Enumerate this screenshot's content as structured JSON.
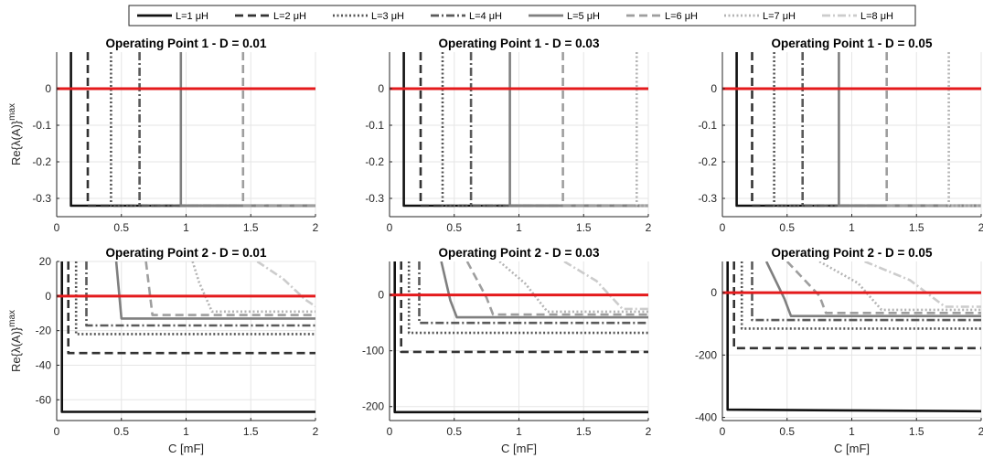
{
  "legend": {
    "position": "top-center",
    "entries": [
      {
        "label": "L=1 μH",
        "color": "#111111",
        "dash": "solid"
      },
      {
        "label": "L=2 μH",
        "color": "#333333",
        "dash": "dashed"
      },
      {
        "label": "L=3 μH",
        "color": "#555555",
        "dash": "dotted"
      },
      {
        "label": "L=4 μH",
        "color": "#5a5a5a",
        "dash": "dashdot"
      },
      {
        "label": "L=5 μH",
        "color": "#7f7f7f",
        "dash": "solid"
      },
      {
        "label": "L=6 μH",
        "color": "#9e9e9e",
        "dash": "dashed"
      },
      {
        "label": "L=7 μH",
        "color": "#b4b4b4",
        "dash": "dotted"
      },
      {
        "label": "L=8 μH",
        "color": "#cccccc",
        "dash": "dashdot"
      }
    ]
  },
  "stability_line": {
    "y": 0,
    "color": "#e41a1c"
  },
  "chart_data": [
    {
      "type": "line",
      "title": "Operating Point 1 - D = 0.01",
      "xlabel": "",
      "ylabel": "Re{λ(A)}max",
      "xlim": [
        0,
        2
      ],
      "ylim": [
        -0.35,
        0.1
      ],
      "xticks": [
        "0",
        "0.5",
        "1",
        "1.5",
        "2"
      ],
      "yticks": [
        {
          "v": 0,
          "t": "0"
        },
        {
          "v": -0.1,
          "t": "-0.1"
        },
        {
          "v": -0.2,
          "t": "-0.2"
        },
        {
          "v": -0.3,
          "t": "-0.3"
        }
      ],
      "grid": true,
      "series": [
        {
          "name": "L=1 μH",
          "x": [
            0.11,
            0.11,
            2
          ],
          "y": [
            0.1,
            -0.32,
            -0.32
          ]
        },
        {
          "name": "L=2 μH",
          "x": [
            0.24,
            0.24,
            2
          ],
          "y": [
            0.1,
            -0.32,
            -0.32
          ]
        },
        {
          "name": "L=3 μH",
          "x": [
            0.42,
            0.42,
            2
          ],
          "y": [
            0.1,
            -0.32,
            -0.32
          ]
        },
        {
          "name": "L=4 μH",
          "x": [
            0.64,
            0.64,
            2
          ],
          "y": [
            0.1,
            -0.32,
            -0.32
          ]
        },
        {
          "name": "L=5 μH",
          "x": [
            0.96,
            0.96,
            2
          ],
          "y": [
            0.1,
            -0.32,
            -0.32
          ]
        },
        {
          "name": "L=6 μH",
          "x": [
            1.44,
            1.44,
            2
          ],
          "y": [
            0.1,
            -0.32,
            -0.32
          ]
        },
        {
          "name": "L=7 μH",
          "x": [],
          "y": []
        },
        {
          "name": "L=8 μH",
          "x": [],
          "y": []
        }
      ]
    },
    {
      "type": "line",
      "title": "Operating Point 1 - D = 0.03",
      "xlabel": "",
      "ylabel": "",
      "xlim": [
        0,
        2
      ],
      "ylim": [
        -0.35,
        0.1
      ],
      "xticks": [
        "0",
        "0.5",
        "1",
        "1.5",
        "2"
      ],
      "yticks": [
        {
          "v": 0,
          "t": "0"
        },
        {
          "v": -0.1,
          "t": "-0.1"
        },
        {
          "v": -0.2,
          "t": "-0.2"
        },
        {
          "v": -0.3,
          "t": "-0.3"
        }
      ],
      "grid": true,
      "series": [
        {
          "name": "L=1 μH",
          "x": [
            0.11,
            0.11,
            2
          ],
          "y": [
            0.1,
            -0.32,
            -0.32
          ]
        },
        {
          "name": "L=2 μH",
          "x": [
            0.24,
            0.24,
            2
          ],
          "y": [
            0.1,
            -0.32,
            -0.32
          ]
        },
        {
          "name": "L=3 μH",
          "x": [
            0.41,
            0.41,
            2
          ],
          "y": [
            0.1,
            -0.32,
            -0.32
          ]
        },
        {
          "name": "L=4 μH",
          "x": [
            0.63,
            0.63,
            2
          ],
          "y": [
            0.1,
            -0.32,
            -0.32
          ]
        },
        {
          "name": "L=5 μH",
          "x": [
            0.93,
            0.93,
            2
          ],
          "y": [
            0.1,
            -0.32,
            -0.32
          ]
        },
        {
          "name": "L=6 μH",
          "x": [
            1.34,
            1.34,
            2
          ],
          "y": [
            0.1,
            -0.32,
            -0.32
          ]
        },
        {
          "name": "L=7 μH",
          "x": [
            1.91,
            1.91,
            2
          ],
          "y": [
            0.1,
            -0.32,
            -0.32
          ]
        },
        {
          "name": "L=8 μH",
          "x": [],
          "y": []
        }
      ]
    },
    {
      "type": "line",
      "title": "Operating Point 1 - D = 0.05",
      "xlabel": "",
      "ylabel": "",
      "xlim": [
        0,
        2
      ],
      "ylim": [
        -0.35,
        0.1
      ],
      "xticks": [
        "0",
        "0.5",
        "1",
        "1.5",
        "2"
      ],
      "yticks": [
        {
          "v": 0,
          "t": "0"
        },
        {
          "v": -0.1,
          "t": "-0.1"
        },
        {
          "v": -0.2,
          "t": "-0.2"
        },
        {
          "v": -0.3,
          "t": "-0.3"
        }
      ],
      "grid": true,
      "series": [
        {
          "name": "L=1 μH",
          "x": [
            0.11,
            0.11,
            2
          ],
          "y": [
            0.1,
            -0.32,
            -0.32
          ]
        },
        {
          "name": "L=2 μH",
          "x": [
            0.23,
            0.23,
            2
          ],
          "y": [
            0.1,
            -0.32,
            -0.32
          ]
        },
        {
          "name": "L=3 μH",
          "x": [
            0.4,
            0.4,
            2
          ],
          "y": [
            0.1,
            -0.32,
            -0.32
          ]
        },
        {
          "name": "L=4 μH",
          "x": [
            0.62,
            0.62,
            2
          ],
          "y": [
            0.1,
            -0.32,
            -0.32
          ]
        },
        {
          "name": "L=5 μH",
          "x": [
            0.9,
            0.9,
            2
          ],
          "y": [
            0.1,
            -0.32,
            -0.32
          ]
        },
        {
          "name": "L=6 μH",
          "x": [
            1.27,
            1.27,
            2
          ],
          "y": [
            0.1,
            -0.32,
            -0.32
          ]
        },
        {
          "name": "L=7 μH",
          "x": [
            1.75,
            1.75,
            2
          ],
          "y": [
            0.1,
            -0.32,
            -0.32
          ]
        },
        {
          "name": "L=8 μH",
          "x": [],
          "y": []
        }
      ]
    },
    {
      "type": "line",
      "title": "Operating Point 2 - D = 0.01",
      "xlabel": "C [mF]",
      "ylabel": "Re{λ(A)}max",
      "xlim": [
        0,
        2
      ],
      "ylim": [
        -72,
        20
      ],
      "xticks": [
        "0",
        "0.5",
        "1",
        "1.5",
        "2"
      ],
      "yticks": [
        {
          "v": 20,
          "t": "20"
        },
        {
          "v": 0,
          "t": "0"
        },
        {
          "v": -20,
          "t": "-20"
        },
        {
          "v": -40,
          "t": "-40"
        },
        {
          "v": -60,
          "t": "-60"
        }
      ],
      "grid": true,
      "series": [
        {
          "name": "L=1 μH",
          "x": [
            0.04,
            0.04,
            2
          ],
          "y": [
            20,
            -67,
            -67
          ]
        },
        {
          "name": "L=2 μH",
          "x": [
            0.09,
            0.09,
            2
          ],
          "y": [
            20,
            -33,
            -33
          ]
        },
        {
          "name": "L=3 μH",
          "x": [
            0.15,
            0.15,
            2
          ],
          "y": [
            20,
            -22,
            -22
          ]
        },
        {
          "name": "L=4 μH",
          "x": [
            0.23,
            0.23,
            2
          ],
          "y": [
            20,
            -17,
            -17
          ]
        },
        {
          "name": "L=5 μH",
          "x": [
            0.46,
            0.5,
            2
          ],
          "y": [
            20,
            -13,
            -13
          ]
        },
        {
          "name": "L=6 μH",
          "x": [
            0.69,
            0.74,
            2
          ],
          "y": [
            20,
            -11,
            -11
          ]
        },
        {
          "name": "L=7 μH",
          "x": [
            1.05,
            1.1,
            1.2,
            2
          ],
          "y": [
            20,
            8,
            -9,
            -9
          ]
        },
        {
          "name": "L=8 μH",
          "x": [
            1.55,
            1.75,
            1.92,
            2
          ],
          "y": [
            20,
            10,
            -2,
            -6
          ]
        }
      ]
    },
    {
      "type": "line",
      "title": "Operating Point 2 - D = 0.03",
      "xlabel": "C [mF]",
      "ylabel": "",
      "xlim": [
        0,
        2
      ],
      "ylim": [
        -225,
        60
      ],
      "xticks": [
        "0",
        "0.5",
        "1",
        "1.5",
        "2"
      ],
      "yticks": [
        {
          "v": 0,
          "t": "0"
        },
        {
          "v": -100,
          "t": "-100"
        },
        {
          "v": -200,
          "t": "-200"
        }
      ],
      "grid": true,
      "series": [
        {
          "name": "L=1 μH",
          "x": [
            0.04,
            0.04,
            2
          ],
          "y": [
            60,
            -210,
            -210
          ]
        },
        {
          "name": "L=2 μH",
          "x": [
            0.09,
            0.09,
            2
          ],
          "y": [
            60,
            -102,
            -102
          ]
        },
        {
          "name": "L=3 μH",
          "x": [
            0.15,
            0.15,
            2
          ],
          "y": [
            60,
            -68,
            -68
          ]
        },
        {
          "name": "L=4 μH",
          "x": [
            0.23,
            0.23,
            2
          ],
          "y": [
            60,
            -50,
            -50
          ]
        },
        {
          "name": "L=5 μH",
          "x": [
            0.4,
            0.47,
            0.52,
            2
          ],
          "y": [
            60,
            -10,
            -40,
            -40
          ]
        },
        {
          "name": "L=6 μH",
          "x": [
            0.6,
            0.75,
            0.8,
            2
          ],
          "y": [
            60,
            -5,
            -35,
            -35
          ]
        },
        {
          "name": "L=7 μH",
          "x": [
            0.85,
            1.05,
            1.22,
            2
          ],
          "y": [
            60,
            20,
            -30,
            -30
          ]
        },
        {
          "name": "L=8 μH",
          "x": [
            1.35,
            1.6,
            1.8,
            2
          ],
          "y": [
            60,
            25,
            -25,
            -25
          ]
        }
      ]
    },
    {
      "type": "line",
      "title": "Operating Point 2 - D = 0.05",
      "xlabel": "C [mF]",
      "ylabel": "",
      "xlim": [
        0,
        2
      ],
      "ylim": [
        -410,
        100
      ],
      "xticks": [
        "0",
        "0.5",
        "1",
        "1.5",
        "2"
      ],
      "yticks": [
        {
          "v": 0,
          "t": "0"
        },
        {
          "v": -200,
          "t": "-200"
        },
        {
          "v": -400,
          "t": "-400"
        }
      ],
      "grid": true,
      "series": [
        {
          "name": "L=1 μH",
          "x": [
            0.04,
            0.04,
            2
          ],
          "y": [
            100,
            -375,
            -380
          ]
        },
        {
          "name": "L=2 μH",
          "x": [
            0.09,
            0.09,
            2
          ],
          "y": [
            100,
            -178,
            -178
          ]
        },
        {
          "name": "L=3 μH",
          "x": [
            0.15,
            0.15,
            2
          ],
          "y": [
            100,
            -115,
            -115
          ]
        },
        {
          "name": "L=4 μH",
          "x": [
            0.23,
            0.23,
            2
          ],
          "y": [
            100,
            -88,
            -88
          ]
        },
        {
          "name": "L=5 μH",
          "x": [
            0.34,
            0.48,
            0.53,
            2
          ],
          "y": [
            100,
            -20,
            -75,
            -75
          ]
        },
        {
          "name": "L=6 μH",
          "x": [
            0.5,
            0.75,
            0.8,
            2
          ],
          "y": [
            100,
            -10,
            -65,
            -65
          ]
        },
        {
          "name": "L=7 μH",
          "x": [
            0.75,
            1.05,
            1.23,
            2
          ],
          "y": [
            100,
            30,
            -55,
            -55
          ]
        },
        {
          "name": "L=8 μH",
          "x": [
            1.1,
            1.45,
            1.72,
            2
          ],
          "y": [
            100,
            40,
            -45,
            -45
          ]
        }
      ]
    }
  ]
}
